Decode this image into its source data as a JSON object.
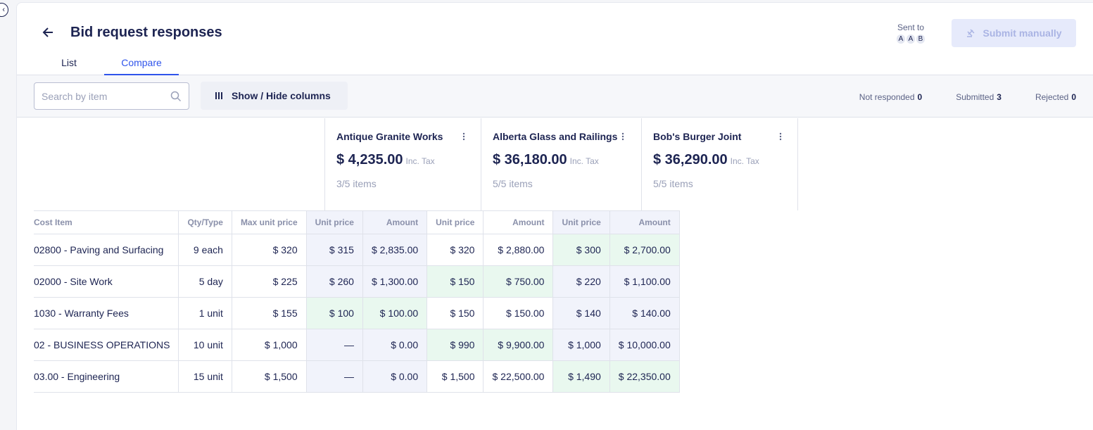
{
  "header": {
    "title": "Bid request responses",
    "tabs": [
      "List",
      "Compare"
    ],
    "active_tab": "Compare",
    "sent_to_label": "Sent to",
    "sent_to_avatars": [
      "A",
      "A",
      "B"
    ],
    "submit_label": "Submit manually"
  },
  "toolbar": {
    "search_placeholder": "Search by item",
    "show_hide_label": "Show / Hide columns",
    "counts": [
      {
        "label": "Not responded",
        "value": "0"
      },
      {
        "label": "Submitted",
        "value": "3"
      },
      {
        "label": "Rejected",
        "value": "0"
      }
    ]
  },
  "vendors": [
    {
      "name": "Antique Granite Works",
      "total": "$ 4,235.00",
      "tax": "Inc. Tax",
      "items": "3/5 items"
    },
    {
      "name": "Alberta Glass and Railings",
      "total": "$ 36,180.00",
      "tax": "Inc. Tax",
      "items": "5/5 items"
    },
    {
      "name": "Bob's Burger Joint",
      "total": "$ 36,290.00",
      "tax": "Inc. Tax",
      "items": "5/5 items"
    }
  ],
  "columns": {
    "cost_item": "Cost Item",
    "qty": "Qty/Type",
    "max_price": "Max unit price",
    "unit_price": "Unit price",
    "amount": "Amount"
  },
  "rows": [
    {
      "item": "02800 - Paving and Surfacing",
      "qty": "9 each",
      "max": "$ 320",
      "bids": [
        [
          "$ 315",
          "$ 2,835.00"
        ],
        [
          "$ 320",
          "$ 2,880.00"
        ],
        [
          "$ 300",
          "$ 2,700.00"
        ]
      ],
      "best": 2
    },
    {
      "item": "02000 - Site Work",
      "qty": "5 day",
      "max": "$ 225",
      "bids": [
        [
          "$ 260",
          "$ 1,300.00"
        ],
        [
          "$ 150",
          "$ 750.00"
        ],
        [
          "$ 220",
          "$ 1,100.00"
        ]
      ],
      "best": 1
    },
    {
      "item": "1030 - Warranty Fees",
      "qty": "1 unit",
      "max": "$ 155",
      "bids": [
        [
          "$ 100",
          "$ 100.00"
        ],
        [
          "$ 150",
          "$ 150.00"
        ],
        [
          "$ 140",
          "$ 140.00"
        ]
      ],
      "best": 0
    },
    {
      "item": "02 - BUSINESS OPERATIONS",
      "qty": "10 unit",
      "max": "$ 1,000",
      "bids": [
        [
          "—",
          "$ 0.00"
        ],
        [
          "$ 990",
          "$ 9,900.00"
        ],
        [
          "$ 1,000",
          "$ 10,000.00"
        ]
      ],
      "best": 1
    },
    {
      "item": "03.00 - Engineering",
      "qty": "15 unit",
      "max": "$ 1,500",
      "bids": [
        [
          "—",
          "$ 0.00"
        ],
        [
          "$ 1,500",
          "$ 22,500.00"
        ],
        [
          "$ 1,490",
          "$ 22,350.00"
        ]
      ],
      "best": 2
    }
  ],
  "colors": {
    "accent": "#2f54eb",
    "best_bg": "#e9f8ef",
    "shade_bg": "#f1f3fb"
  }
}
